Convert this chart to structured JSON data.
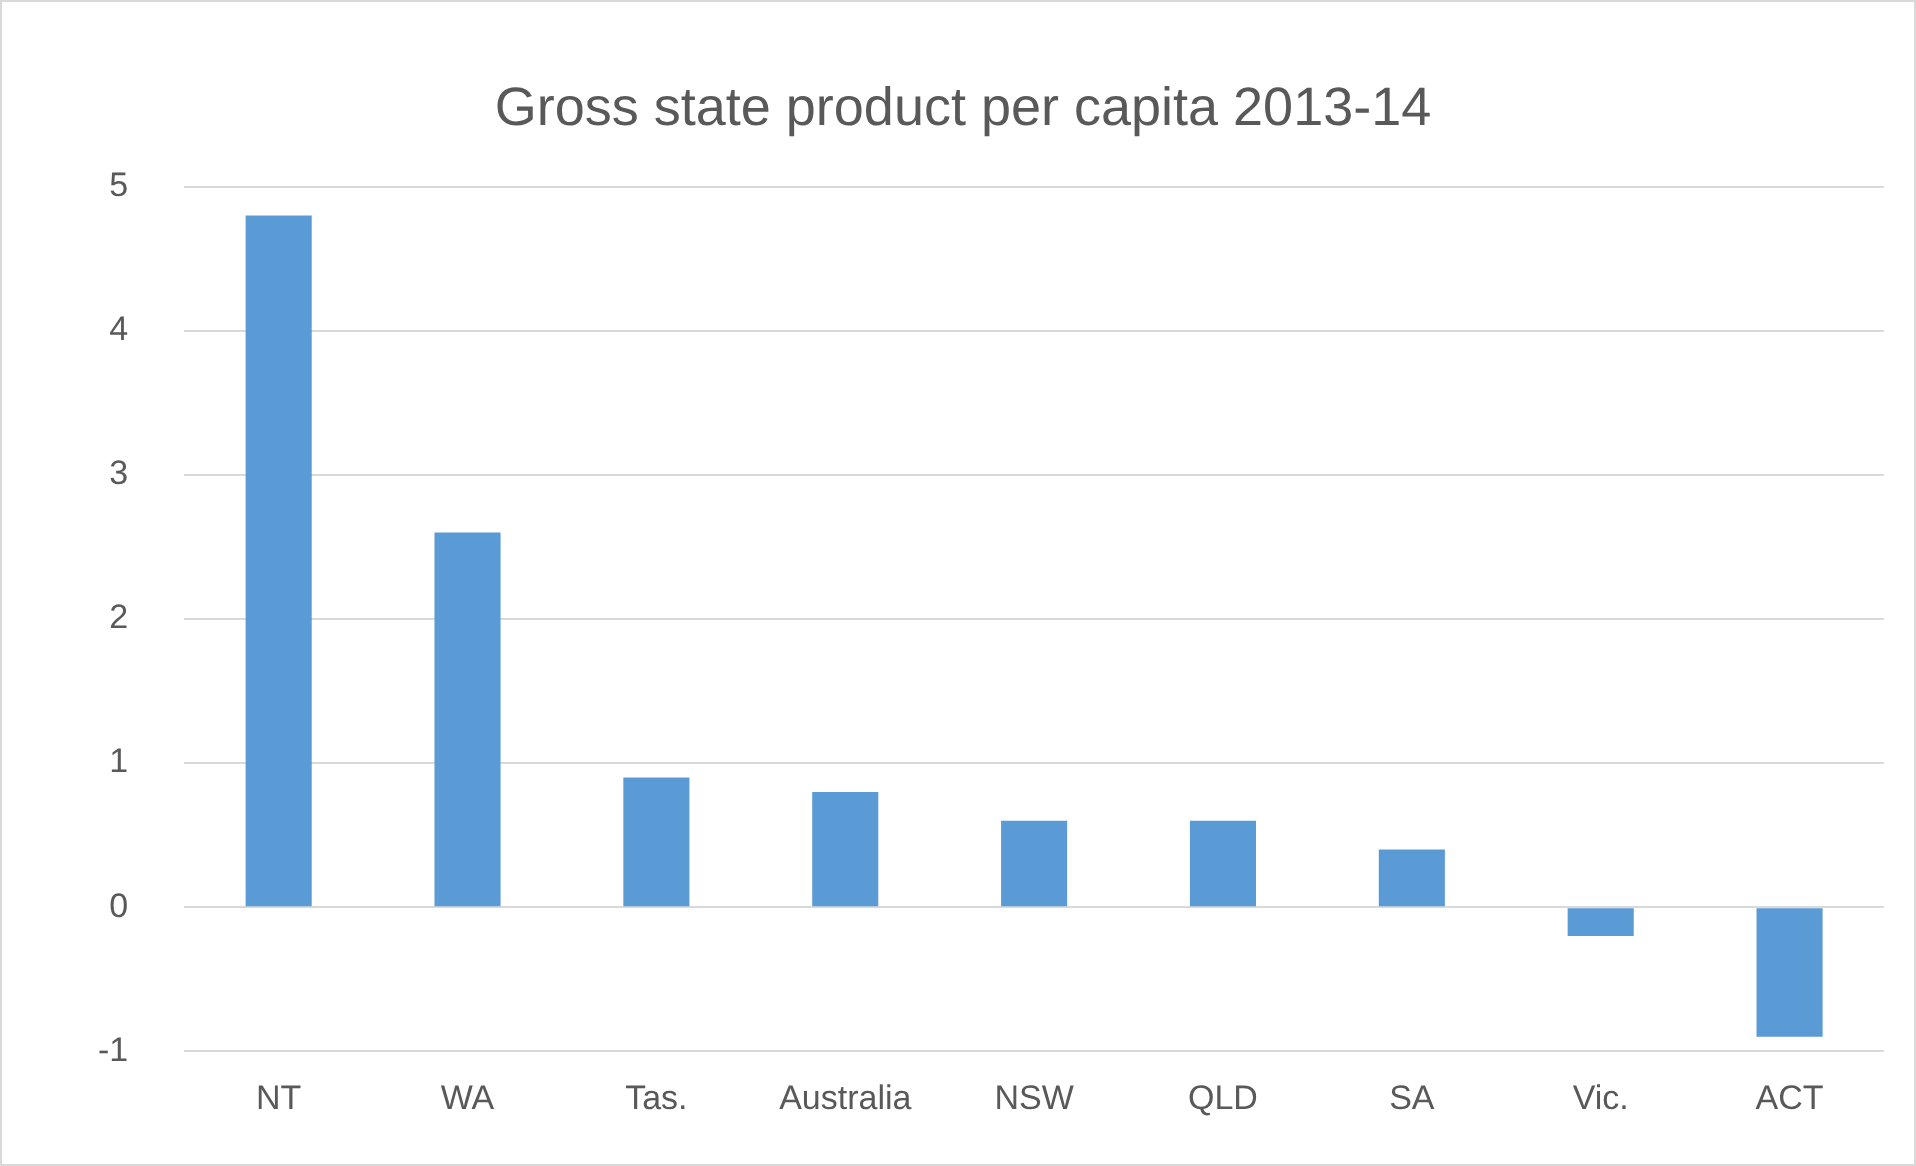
{
  "chart_data": {
    "type": "bar",
    "title": "Gross state product per capita 2013-14",
    "categories": [
      "NT",
      "WA",
      "Tas.",
      "Australia",
      "NSW",
      "QLD",
      "SA",
      "Vic.",
      "ACT"
    ],
    "values": [
      4.8,
      2.6,
      0.9,
      0.8,
      0.6,
      0.6,
      0.4,
      -0.2,
      -0.9
    ],
    "color": "#5b9bd5",
    "ylim": [
      -1,
      5
    ],
    "yticks": [
      -1,
      0,
      1,
      2,
      3,
      4,
      5
    ],
    "grid": "y"
  }
}
